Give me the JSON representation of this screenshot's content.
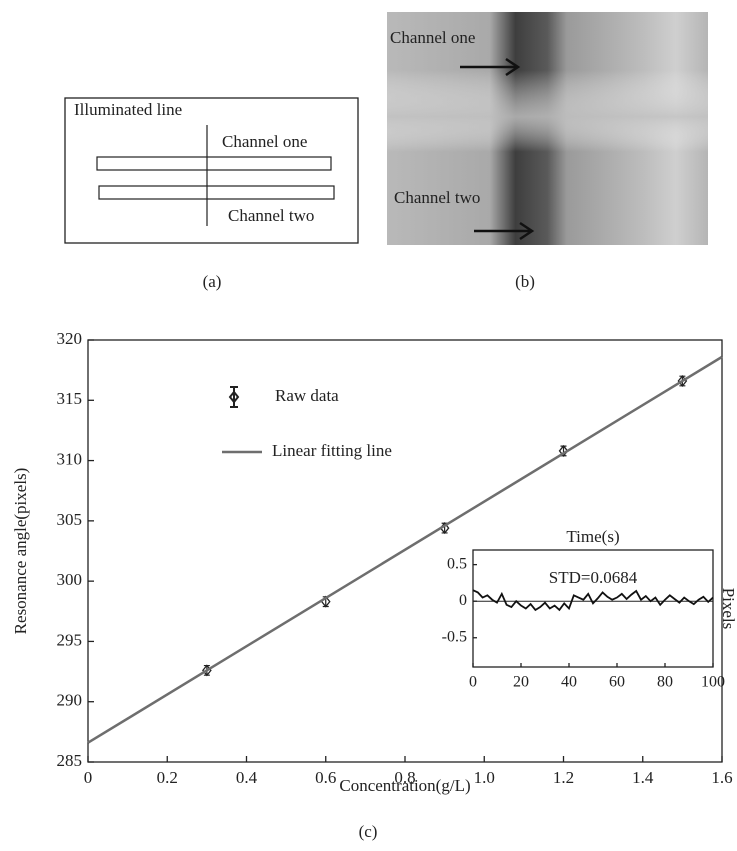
{
  "diagram": {
    "illuminated_line": "Illuminated line",
    "channel_one": "Channel one",
    "channel_two": "Channel two",
    "caption": "(a)"
  },
  "photo": {
    "channel_one": "Channel one",
    "channel_two": "Channel two",
    "caption": "(b)"
  },
  "chart_data": [
    {
      "type": "scatter",
      "caption": "(c)",
      "x_label": "Concentration(g/L)",
      "y_label": "Resonance angle(pixels)",
      "xlim": [
        0,
        1.6
      ],
      "xticks": [
        0,
        0.2,
        0.4,
        0.6,
        0.8,
        {
          "value": 1,
          "label": "1.0"
        },
        1.2,
        1.4,
        1.6
      ],
      "ylim": [
        285,
        320
      ],
      "yticks": [
        285,
        290,
        295,
        300,
        305,
        310,
        315,
        320
      ],
      "series": [
        {
          "name": "Raw data",
          "color": "#222222",
          "x": [
            0.3,
            0.6,
            0.9,
            1.2,
            1.5
          ],
          "values": [
            292.6,
            298.3,
            304.4,
            310.8,
            316.6
          ],
          "errors": [
            0.4,
            0.4,
            0.4,
            0.4,
            0.4
          ]
        },
        {
          "name": "Linear fitting line",
          "color": "#6e6e6e",
          "x": [
            0,
            1.6
          ],
          "values": [
            286.6,
            318.6
          ]
        }
      ]
    },
    {
      "type": "line",
      "title": "Time(s)",
      "y_label": "Pixels",
      "annotation": "STD=0.0684",
      "color": "#111111",
      "xlim": [
        0,
        100
      ],
      "xticks": [
        0,
        20,
        40,
        60,
        80,
        100
      ],
      "ylim": [
        -0.9,
        0.7
      ],
      "yticks": [
        -0.5,
        0,
        0.5
      ],
      "hline": 0,
      "x": [
        0,
        2,
        4,
        6,
        8,
        10,
        12,
        14,
        16,
        18,
        20,
        22,
        24,
        26,
        28,
        30,
        32,
        34,
        36,
        38,
        40,
        42,
        44,
        46,
        48,
        50,
        52,
        54,
        56,
        58,
        60,
        62,
        64,
        66,
        68,
        70,
        72,
        74,
        76,
        78,
        80,
        82,
        84,
        86,
        88,
        90,
        92,
        94,
        96,
        98,
        100
      ],
      "values": [
        0.15,
        0.12,
        0.05,
        0.08,
        0.02,
        -0.02,
        0.1,
        -0.05,
        -0.08,
        0.0,
        -0.06,
        -0.1,
        -0.04,
        -0.12,
        -0.08,
        -0.02,
        -0.1,
        -0.06,
        -0.12,
        -0.03,
        -0.1,
        0.08,
        0.05,
        0.02,
        0.1,
        -0.03,
        0.04,
        0.12,
        0.06,
        0.02,
        0.05,
        0.1,
        0.03,
        0.09,
        0.14,
        0.02,
        0.07,
        0.0,
        0.05,
        -0.05,
        0.02,
        0.08,
        0.03,
        -0.02,
        0.05,
        0.0,
        -0.04,
        0.02,
        0.06,
        -0.01,
        0.05
      ]
    }
  ]
}
